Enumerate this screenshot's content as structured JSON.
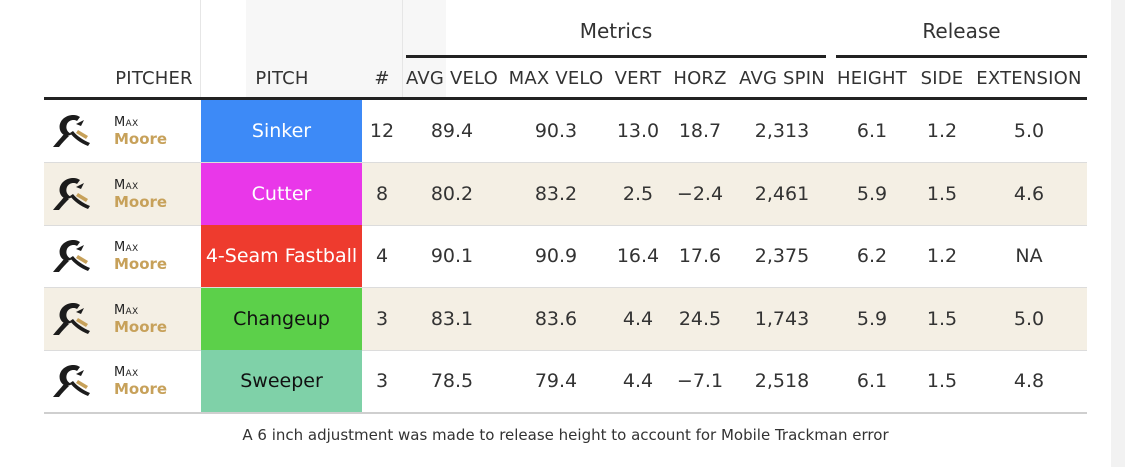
{
  "headers": {
    "groups": {
      "metrics": "Metrics",
      "release": "Release"
    },
    "columns": {
      "pitcher": "PITCHER",
      "pitch": "PITCH",
      "count": "#",
      "avg_velo": "AVG VELO",
      "max_velo": "MAX VELO",
      "vert": "VERT",
      "horz": "HORZ",
      "avg_spin": "AVG SPIN",
      "height": "HEIGHT",
      "side": "SIDE",
      "extension": "EXTENSION"
    }
  },
  "rows": [
    {
      "first": "Max",
      "last": "Moore",
      "pitch": "Sinker",
      "pitch_color": "#3d8af7",
      "pitch_text": "#ffffff",
      "count": "12",
      "avg_velo": "89.4",
      "max_velo": "90.3",
      "vert": "13.0",
      "horz": "18.7",
      "avg_spin": "2,313",
      "height": "6.1",
      "side": "1.2",
      "extension": "5.0"
    },
    {
      "first": "Max",
      "last": "Moore",
      "pitch": "Cutter",
      "pitch_color": "#e937e9",
      "pitch_text": "#ffffff",
      "count": "8",
      "avg_velo": "80.2",
      "max_velo": "83.2",
      "vert": "2.5",
      "horz": "−2.4",
      "avg_spin": "2,461",
      "height": "5.9",
      "side": "1.5",
      "extension": "4.6"
    },
    {
      "first": "Max",
      "last": "Moore",
      "pitch": "4-Seam Fastball",
      "pitch_color": "#ee3b2e",
      "pitch_text": "#ffffff",
      "count": "4",
      "avg_velo": "90.1",
      "max_velo": "90.9",
      "vert": "16.4",
      "horz": "17.6",
      "avg_spin": "2,375",
      "height": "6.2",
      "side": "1.2",
      "extension": "NA"
    },
    {
      "first": "Max",
      "last": "Moore",
      "pitch": "Changeup",
      "pitch_color": "#5cd04a",
      "pitch_text": "#111111",
      "count": "3",
      "avg_velo": "83.1",
      "max_velo": "83.6",
      "vert": "4.4",
      "horz": "24.5",
      "avg_spin": "1,743",
      "height": "5.9",
      "side": "1.5",
      "extension": "5.0"
    },
    {
      "first": "Max",
      "last": "Moore",
      "pitch": "Sweeper",
      "pitch_color": "#7fd1a8",
      "pitch_text": "#111111",
      "count": "3",
      "avg_velo": "78.5",
      "max_velo": "79.4",
      "vert": "4.4",
      "horz": "−7.1",
      "avg_spin": "2,518",
      "height": "6.1",
      "side": "1.5",
      "extension": "4.8"
    }
  ],
  "footnote": "A 6 inch adjustment was made to release height to account for Mobile Trackman error",
  "colors": {
    "alt_row": "#f4efe4",
    "last_name": "#c7a15a",
    "rule": "#222222"
  },
  "icons": {
    "logo": "team-logo-icon"
  }
}
